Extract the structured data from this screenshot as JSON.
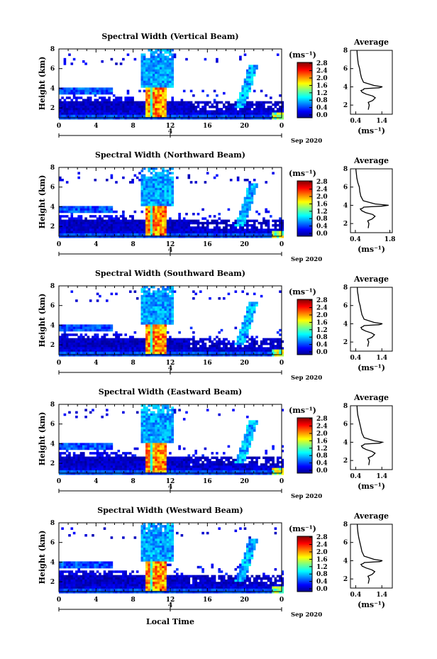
{
  "figure_xlabel": "Local Time",
  "chart_data": [
    {
      "type": "heatmap",
      "title": "Spectral Width (Vertical Beam)",
      "ylabel": "Height (km)",
      "xlabel": "",
      "xlim": [
        0,
        24
      ],
      "ylim": [
        1,
        8
      ],
      "xticks": [
        "0",
        "4",
        "8",
        "12",
        "16",
        "20",
        "0"
      ],
      "yticks": [
        "2",
        "4",
        "6",
        "8"
      ],
      "date_tick": "4",
      "date_label": "Sep 2020",
      "colorbar": {
        "unit": "(ms⁻¹)",
        "ticks": [
          "2.8",
          "2.4",
          "2.0",
          "1.6",
          "1.2",
          "0.8",
          "0.4",
          "0.0"
        ],
        "range": [
          0.0,
          3.0
        ]
      },
      "profile": {
        "type": "line",
        "title": "Average",
        "xlabel": "(ms⁻¹)",
        "xticks": [
          "0.4",
          "1.4"
        ],
        "xlim": [
          0.2,
          1.8
        ],
        "yticks": [
          "2",
          "4",
          "6",
          "8"
        ],
        "ylim": [
          1,
          8
        ],
        "x": [
          0.88,
          0.92,
          0.88,
          1.05,
          1.15,
          1.05,
          0.8,
          0.65,
          0.6,
          0.7,
          0.72,
          1.0,
          1.3,
          1.42,
          1.1,
          0.7,
          0.62,
          0.58,
          0.55,
          0.5,
          0.48,
          0.46,
          0.45
        ],
        "y": [
          1.5,
          2.0,
          2.3,
          2.5,
          2.8,
          3.0,
          3.2,
          3.4,
          3.6,
          3.7,
          3.8,
          3.85,
          3.9,
          4.0,
          4.15,
          4.5,
          5.0,
          5.5,
          6.0,
          6.5,
          7.0,
          7.5,
          8.0
        ]
      }
    },
    {
      "type": "heatmap",
      "title": "Spectral Width (Northward Beam)",
      "ylabel": "Height (km)",
      "xlabel": "",
      "xlim": [
        0,
        24
      ],
      "ylim": [
        1,
        8
      ],
      "xticks": [
        "0",
        "4",
        "8",
        "12",
        "16",
        "20",
        "0"
      ],
      "yticks": [
        "2",
        "4",
        "6",
        "8"
      ],
      "date_tick": "4",
      "date_label": "Sep 2020",
      "colorbar": {
        "unit": "(ms⁻¹)",
        "ticks": [
          "2.8",
          "2.4",
          "2.0",
          "1.6",
          "1.2",
          "0.8",
          "0.4",
          "0.0"
        ],
        "range": [
          0.0,
          3.0
        ]
      },
      "profile": {
        "type": "line",
        "title": "Average",
        "xlabel": "(ms⁻¹)",
        "xticks": [
          "0.4",
          "1.8"
        ],
        "xlim": [
          0.2,
          1.9
        ],
        "yticks": [
          "2",
          "4",
          "6",
          "8"
        ],
        "ylim": [
          1,
          8
        ],
        "x": [
          0.92,
          0.95,
          0.9,
          1.08,
          1.2,
          1.1,
          0.82,
          0.66,
          0.6,
          0.7,
          0.74,
          1.05,
          1.45,
          1.75,
          1.2,
          0.72,
          0.62,
          0.58,
          0.56,
          0.5,
          0.46,
          0.44,
          0.42
        ],
        "y": [
          1.5,
          2.0,
          2.3,
          2.5,
          2.8,
          3.0,
          3.2,
          3.4,
          3.6,
          3.7,
          3.8,
          3.85,
          3.9,
          4.0,
          4.15,
          4.5,
          5.0,
          5.5,
          6.0,
          6.5,
          7.0,
          7.5,
          8.0
        ]
      }
    },
    {
      "type": "heatmap",
      "title": "Spectral Width (Southward Beam)",
      "ylabel": "Height (km)",
      "xlabel": "",
      "xlim": [
        0,
        24
      ],
      "ylim": [
        1,
        8
      ],
      "xticks": [
        "0",
        "4",
        "8",
        "12",
        "16",
        "20",
        "0"
      ],
      "yticks": [
        "2",
        "4",
        "6",
        "8"
      ],
      "date_tick": "4",
      "date_label": "Sep 2020",
      "colorbar": {
        "unit": "(ms⁻¹)",
        "ticks": [
          "2.8",
          "2.4",
          "2.0",
          "1.6",
          "1.2",
          "0.8",
          "0.4",
          "0.0"
        ],
        "range": [
          0.0,
          3.0
        ]
      },
      "profile": {
        "type": "line",
        "title": "Average",
        "xlabel": "(ms⁻¹)",
        "xticks": [
          "0.4",
          "1.4"
        ],
        "xlim": [
          0.2,
          1.8
        ],
        "yticks": [
          "2",
          "4",
          "6",
          "8"
        ],
        "ylim": [
          1,
          8
        ],
        "x": [
          0.86,
          0.9,
          0.85,
          1.02,
          1.12,
          1.0,
          0.78,
          0.64,
          0.6,
          0.68,
          0.72,
          1.0,
          1.3,
          1.42,
          1.1,
          0.72,
          0.64,
          0.6,
          0.57,
          0.52,
          0.5,
          0.47,
          0.46
        ],
        "y": [
          1.5,
          2.0,
          2.3,
          2.5,
          2.8,
          3.0,
          3.2,
          3.4,
          3.6,
          3.7,
          3.8,
          3.85,
          3.9,
          4.0,
          4.15,
          4.5,
          5.0,
          5.5,
          6.0,
          6.5,
          7.0,
          7.5,
          8.0
        ]
      }
    },
    {
      "type": "heatmap",
      "title": "Spectral Width (Eastward Beam)",
      "ylabel": "Height (km)",
      "xlabel": "",
      "xlim": [
        0,
        24
      ],
      "ylim": [
        1,
        8
      ],
      "xticks": [
        "0",
        "4",
        "8",
        "12",
        "16",
        "20",
        "0"
      ],
      "yticks": [
        "2",
        "4",
        "6",
        "8"
      ],
      "date_tick": "4",
      "date_label": "Sep 2020",
      "colorbar": {
        "unit": "(ms⁻¹)",
        "ticks": [
          "2.8",
          "2.4",
          "2.0",
          "1.6",
          "1.2",
          "0.8",
          "0.4",
          "0.0"
        ],
        "range": [
          0.0,
          3.0
        ]
      },
      "profile": {
        "type": "line",
        "title": "Average",
        "xlabel": "(ms⁻¹)",
        "xticks": [
          "0.4",
          "1.4"
        ],
        "xlim": [
          0.2,
          1.8
        ],
        "yticks": [
          "2",
          "4",
          "6",
          "8"
        ],
        "ylim": [
          1,
          8
        ],
        "x": [
          0.9,
          0.93,
          0.88,
          1.04,
          1.14,
          1.02,
          0.8,
          0.66,
          0.62,
          0.7,
          0.74,
          1.02,
          1.32,
          1.42,
          1.12,
          0.72,
          0.64,
          0.6,
          0.56,
          0.52,
          0.48,
          0.46,
          0.45
        ],
        "y": [
          1.5,
          2.0,
          2.3,
          2.5,
          2.8,
          3.0,
          3.2,
          3.4,
          3.6,
          3.7,
          3.8,
          3.85,
          3.9,
          4.0,
          4.15,
          4.5,
          5.0,
          5.5,
          6.0,
          6.5,
          7.0,
          7.5,
          8.0
        ]
      }
    },
    {
      "type": "heatmap",
      "title": "Spectral Width (Westward Beam)",
      "ylabel": "Height (km)",
      "xlabel": "",
      "xlim": [
        0,
        24
      ],
      "ylim": [
        1,
        8
      ],
      "xticks": [
        "0",
        "4",
        "8",
        "12",
        "16",
        "20",
        "0"
      ],
      "yticks": [
        "2",
        "4",
        "6",
        "8"
      ],
      "date_tick": "4",
      "date_label": "Sep 2020",
      "colorbar": {
        "unit": "(ms⁻¹)",
        "ticks": [
          "2.8",
          "2.4",
          "2.0",
          "1.6",
          "1.2",
          "0.8",
          "0.4",
          "0.0"
        ],
        "range": [
          0.0,
          3.0
        ]
      },
      "profile": {
        "type": "line",
        "title": "Average",
        "xlabel": "(ms⁻¹)",
        "xticks": [
          "0.4",
          "1.4"
        ],
        "xlim": [
          0.2,
          1.8
        ],
        "yticks": [
          "2",
          "4",
          "6",
          "8"
        ],
        "ylim": [
          1,
          8
        ],
        "x": [
          0.88,
          0.92,
          0.87,
          1.03,
          1.13,
          1.02,
          0.8,
          0.65,
          0.6,
          0.69,
          0.73,
          1.02,
          1.32,
          1.42,
          1.1,
          0.72,
          0.64,
          0.6,
          0.56,
          0.52,
          0.49,
          0.47,
          0.46
        ],
        "y": [
          1.5,
          2.0,
          2.3,
          2.5,
          2.8,
          3.0,
          3.2,
          3.4,
          3.6,
          3.7,
          3.8,
          3.85,
          3.9,
          4.0,
          4.15,
          4.5,
          5.0,
          5.5,
          6.0,
          6.5,
          7.0,
          7.5,
          8.0
        ]
      }
    }
  ]
}
